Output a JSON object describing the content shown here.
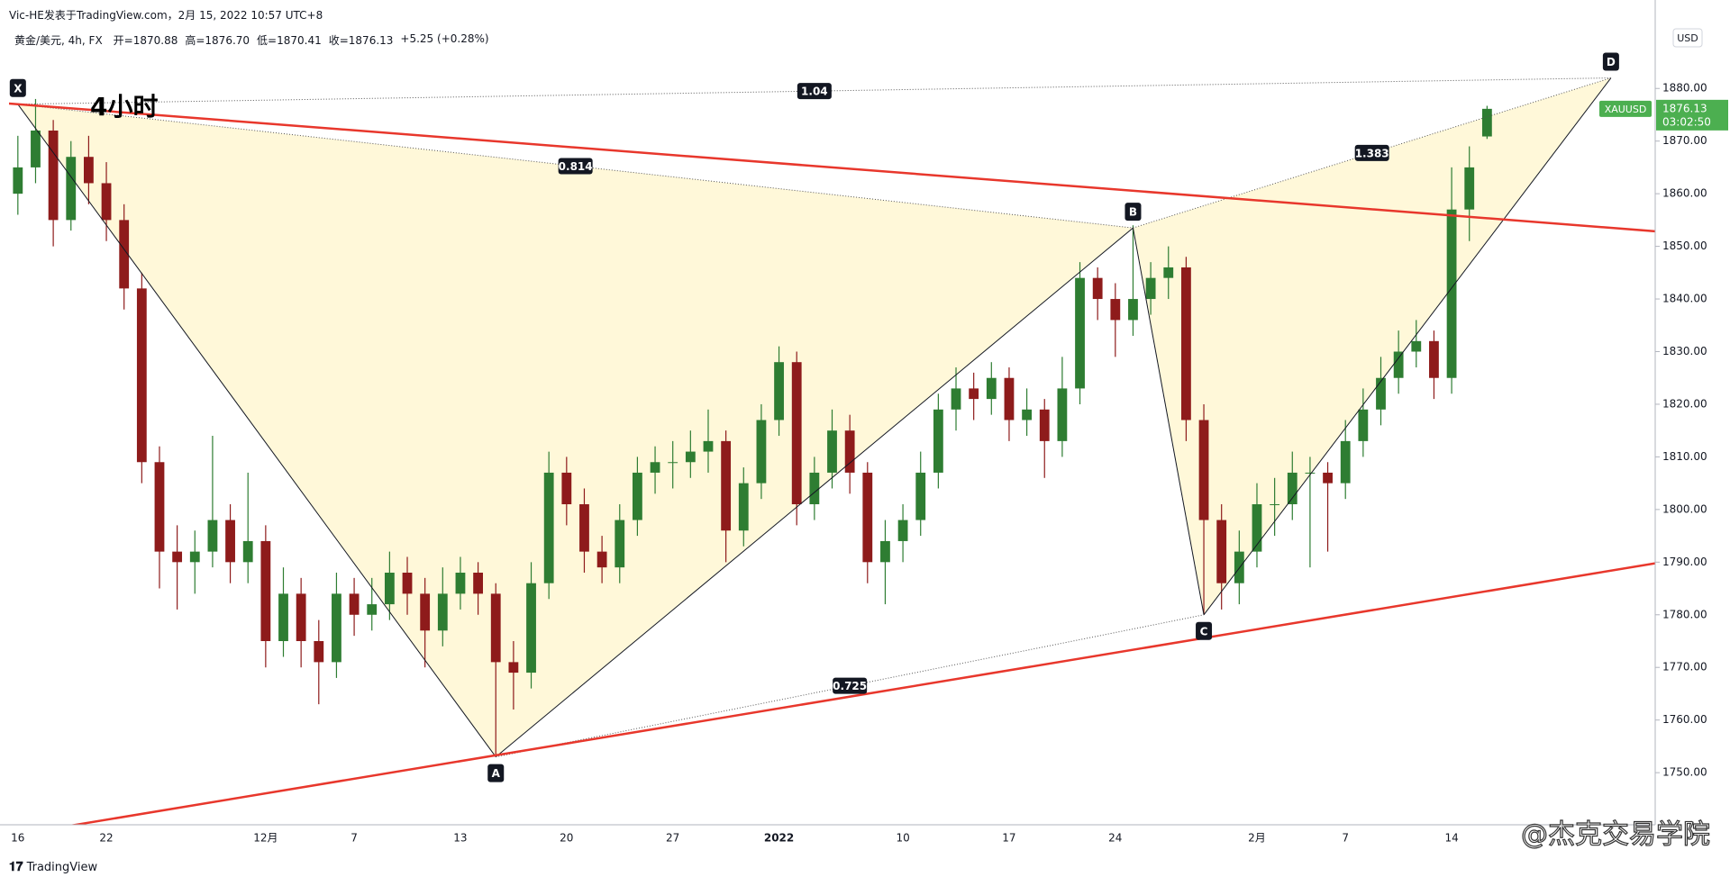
{
  "header": "Vic-HE发表于TradingView.com，2月 15, 2022 10:57 UTC+8",
  "chart_data": {
    "type": "candlestick",
    "legend": [
      "黄金/美元, 4h, FX",
      "开=1870.88",
      "高=1876.70",
      "低=1870.41",
      "收=1876.13",
      "+5.25 (+0.28%)"
    ],
    "annotation": "4小时",
    "currency": "USD",
    "up_color": "#2e7d32",
    "down_color": "#8e1b1b",
    "categories": [
      "16",
      null,
      null,
      null,
      null,
      "22",
      null,
      null,
      null,
      null,
      null,
      null,
      null,
      null,
      "12月",
      null,
      null,
      null,
      null,
      "7",
      null,
      null,
      null,
      null,
      null,
      "13",
      null,
      null,
      null,
      null,
      null,
      "20",
      null,
      null,
      null,
      null,
      null,
      "27",
      null,
      null,
      null,
      null,
      null,
      "2022",
      null,
      null,
      null,
      null,
      null,
      null,
      "10",
      null,
      null,
      null,
      null,
      null,
      "17",
      null,
      null,
      null,
      null,
      null,
      "24",
      null,
      null,
      null,
      null,
      null,
      null,
      null,
      "2月",
      null,
      null,
      null,
      null,
      "7",
      null,
      null,
      null,
      null,
      null,
      "14",
      null,
      null,
      null,
      null,
      null,
      null,
      null,
      null,
      null,
      null,
      null
    ],
    "candles": [
      [
        1860,
        1871,
        1856,
        1865
      ],
      [
        1865,
        1878,
        1862,
        1872
      ],
      [
        1872,
        1874,
        1850,
        1855
      ],
      [
        1855,
        1870,
        1853,
        1867
      ],
      [
        1867,
        1871,
        1858,
        1862
      ],
      [
        1862,
        1866,
        1851,
        1855
      ],
      [
        1855,
        1858,
        1838,
        1842
      ],
      [
        1842,
        1845,
        1805,
        1809
      ],
      [
        1809,
        1812,
        1785,
        1792
      ],
      [
        1792,
        1797,
        1781,
        1790
      ],
      [
        1790,
        1796,
        1784,
        1792
      ],
      [
        1792,
        1814,
        1789,
        1798
      ],
      [
        1798,
        1801,
        1786,
        1790
      ],
      [
        1790,
        1807,
        1786,
        1794
      ],
      [
        1794,
        1797,
        1770,
        1775
      ],
      [
        1775,
        1789,
        1772,
        1784
      ],
      [
        1784,
        1787,
        1770,
        1775
      ],
      [
        1775,
        1779,
        1763,
        1771
      ],
      [
        1771,
        1788,
        1768,
        1784
      ],
      [
        1784,
        1787,
        1776,
        1780
      ],
      [
        1780,
        1787,
        1777,
        1782
      ],
      [
        1782,
        1792,
        1779,
        1788
      ],
      [
        1788,
        1791,
        1780,
        1784
      ],
      [
        1784,
        1787,
        1770,
        1777
      ],
      [
        1777,
        1789,
        1774,
        1784
      ],
      [
        1784,
        1791,
        1781,
        1788
      ],
      [
        1788,
        1790,
        1780,
        1784
      ],
      [
        1784,
        1786,
        1753,
        1771
      ],
      [
        1771,
        1775,
        1762,
        1769
      ],
      [
        1769,
        1790,
        1766,
        1786
      ],
      [
        1786,
        1811,
        1783,
        1807
      ],
      [
        1807,
        1810,
        1797,
        1801
      ],
      [
        1801,
        1804,
        1788,
        1792
      ],
      [
        1792,
        1795,
        1786,
        1789
      ],
      [
        1789,
        1801,
        1786,
        1798
      ],
      [
        1798,
        1810,
        1795,
        1807
      ],
      [
        1807,
        1812,
        1803,
        1809
      ],
      [
        1809,
        1813,
        1804,
        1809
      ],
      [
        1809,
        1815,
        1806,
        1811
      ],
      [
        1811,
        1819,
        1807,
        1813
      ],
      [
        1813,
        1815,
        1790,
        1796
      ],
      [
        1796,
        1808,
        1793,
        1805
      ],
      [
        1805,
        1820,
        1802,
        1817
      ],
      [
        1817,
        1831,
        1814,
        1828
      ],
      [
        1828,
        1830,
        1797,
        1801
      ],
      [
        1801,
        1810,
        1798,
        1807
      ],
      [
        1807,
        1819,
        1804,
        1815
      ],
      [
        1815,
        1818,
        1803,
        1807
      ],
      [
        1807,
        1809,
        1786,
        1790
      ],
      [
        1790,
        1798,
        1782,
        1794
      ],
      [
        1794,
        1801,
        1790,
        1798
      ],
      [
        1798,
        1811,
        1795,
        1807
      ],
      [
        1807,
        1822,
        1804,
        1819
      ],
      [
        1819,
        1827,
        1815,
        1823
      ],
      [
        1823,
        1826,
        1817,
        1821
      ],
      [
        1821,
        1828,
        1818,
        1825
      ],
      [
        1825,
        1827,
        1813,
        1817
      ],
      [
        1817,
        1823,
        1814,
        1819
      ],
      [
        1819,
        1821,
        1806,
        1813
      ],
      [
        1813,
        1829,
        1810,
        1823
      ],
      [
        1823,
        1847,
        1820,
        1844
      ],
      [
        1844,
        1846,
        1836,
        1840
      ],
      [
        1840,
        1843,
        1829,
        1836
      ],
      [
        1836,
        1854,
        1833,
        1840
      ],
      [
        1840,
        1847,
        1837,
        1844
      ],
      [
        1844,
        1850,
        1840,
        1846
      ],
      [
        1846,
        1848,
        1813,
        1817
      ],
      [
        1817,
        1820,
        1780,
        1798
      ],
      [
        1798,
        1801,
        1781,
        1786
      ],
      [
        1786,
        1796,
        1782,
        1792
      ],
      [
        1792,
        1805,
        1789,
        1801
      ],
      [
        1801,
        1806,
        1795,
        1801
      ],
      [
        1801,
        1811,
        1798,
        1807
      ],
      [
        1807,
        1810,
        1789,
        1807
      ],
      [
        1807,
        1809,
        1792,
        1805
      ],
      [
        1805,
        1817,
        1802,
        1813
      ],
      [
        1813,
        1823,
        1810,
        1819
      ],
      [
        1819,
        1829,
        1816,
        1825
      ],
      [
        1825,
        1834,
        1822,
        1830
      ],
      [
        1830,
        1836,
        1827,
        1832
      ],
      [
        1832,
        1834,
        1821,
        1825
      ],
      [
        1825,
        1865,
        1822,
        1857
      ],
      [
        1857,
        1869,
        1851,
        1865
      ],
      [
        1870.88,
        1876.7,
        1870.41,
        1876.13
      ],
      null,
      null,
      null,
      null,
      null,
      null,
      null,
      null,
      null
    ],
    "ylim": [
      1740.1,
      1892.7
    ],
    "yticks": [
      {
        "value": 1750,
        "label": "1750.00"
      },
      {
        "value": 1760,
        "label": "1760.00"
      },
      {
        "value": 1770,
        "label": "1770.00"
      },
      {
        "value": 1780,
        "label": "1780.00"
      },
      {
        "value": 1790,
        "label": "1790.00"
      },
      {
        "value": 1800,
        "label": "1800.00"
      },
      {
        "value": 1810,
        "label": "1810.00"
      },
      {
        "value": 1820,
        "label": "1820.00"
      },
      {
        "value": 1830,
        "label": "1830.00"
      },
      {
        "value": 1840,
        "label": "1840.00"
      },
      {
        "value": 1850,
        "label": "1850.00"
      },
      {
        "value": 1860,
        "label": "1860.00"
      },
      {
        "value": 1870,
        "label": "1870.00"
      },
      {
        "value": 1880,
        "label": "1880.00"
      }
    ],
    "grid": false,
    "pattern": {
      "fill": "#fff6cc",
      "line_color": "#131722",
      "points": [
        {
          "label": "X",
          "index": 0,
          "value": 1877
        },
        {
          "label": "A",
          "index": 27,
          "value": 1753
        },
        {
          "label": "B",
          "index": 63,
          "value": 1853.5
        },
        {
          "label": "C",
          "index": 67,
          "value": 1780
        },
        {
          "label": "D",
          "index": 90,
          "value": 1882
        }
      ],
      "ratios": [
        {
          "value": 1.04,
          "from": "X",
          "to": "D"
        },
        {
          "value": 0.814,
          "from": "X",
          "to": "B"
        },
        {
          "value": 0.725,
          "from": "A",
          "to": "C"
        },
        {
          "value": 1.383,
          "from": "B",
          "to": "D"
        }
      ]
    },
    "trendlines": [
      {
        "color": "#e8372c",
        "points": [
          {
            "index": 0,
            "value": 1877
          },
          {
            "index": 92,
            "value": 1853
          }
        ]
      },
      {
        "color": "#e8372c",
        "points": [
          {
            "index": 4,
            "value": 1740.5
          },
          {
            "index": 92,
            "value": 1789.5
          }
        ]
      }
    ],
    "last_price": {
      "symbol": "XAUUSD",
      "value": 1876.13,
      "countdown": "03:02:50",
      "color": "#4caf50"
    }
  },
  "brand": "TradingView",
  "watermark": "@杰克交易学院"
}
